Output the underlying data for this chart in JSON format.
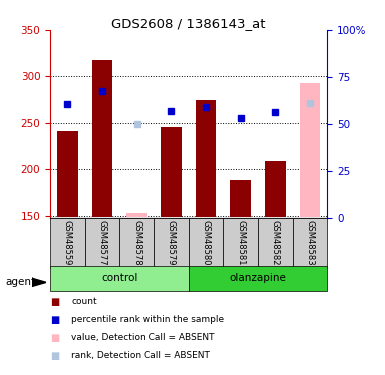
{
  "title": "GDS2608 / 1386143_at",
  "samples": [
    "GSM48559",
    "GSM48577",
    "GSM48578",
    "GSM48579",
    "GSM48580",
    "GSM48581",
    "GSM48582",
    "GSM48583"
  ],
  "groups": [
    {
      "name": "control",
      "indices": [
        0,
        1,
        2,
        3
      ],
      "color": "#90ee90"
    },
    {
      "name": "olanzapine",
      "indices": [
        4,
        5,
        6,
        7
      ],
      "color": "#32cd32"
    }
  ],
  "bar_values": [
    241,
    318,
    null,
    246,
    275,
    188,
    209,
    null
  ],
  "bar_colors": [
    "#8b0000",
    "#8b0000",
    null,
    "#8b0000",
    "#8b0000",
    "#8b0000",
    "#8b0000",
    null
  ],
  "absent_bar_values": [
    null,
    null,
    153,
    null,
    null,
    null,
    null,
    293
  ],
  "rank_values": [
    270,
    284,
    null,
    263,
    267,
    255,
    262,
    null
  ],
  "rank_absent_values": [
    null,
    null,
    249,
    null,
    null,
    null,
    null,
    271
  ],
  "ylim_left": [
    148,
    350
  ],
  "ylim_right": [
    0,
    100
  ],
  "yticks_left": [
    150,
    200,
    250,
    300,
    350
  ],
  "yticks_right": [
    0,
    25,
    50,
    75,
    100
  ],
  "ytick_labels_right": [
    "0",
    "25",
    "50",
    "75",
    "100%"
  ],
  "left_axis_color": "#cc0000",
  "right_axis_color": "#0000cc",
  "grid_color": "#000000",
  "bar_width": 0.6,
  "legend_items": [
    {
      "label": "count",
      "color": "#8b0000"
    },
    {
      "label": "percentile rank within the sample",
      "color": "#0000cc"
    },
    {
      "label": "value, Detection Call = ABSENT",
      "color": "#ffb6c1"
    },
    {
      "label": "rank, Detection Call = ABSENT",
      "color": "#b0c4de"
    }
  ]
}
